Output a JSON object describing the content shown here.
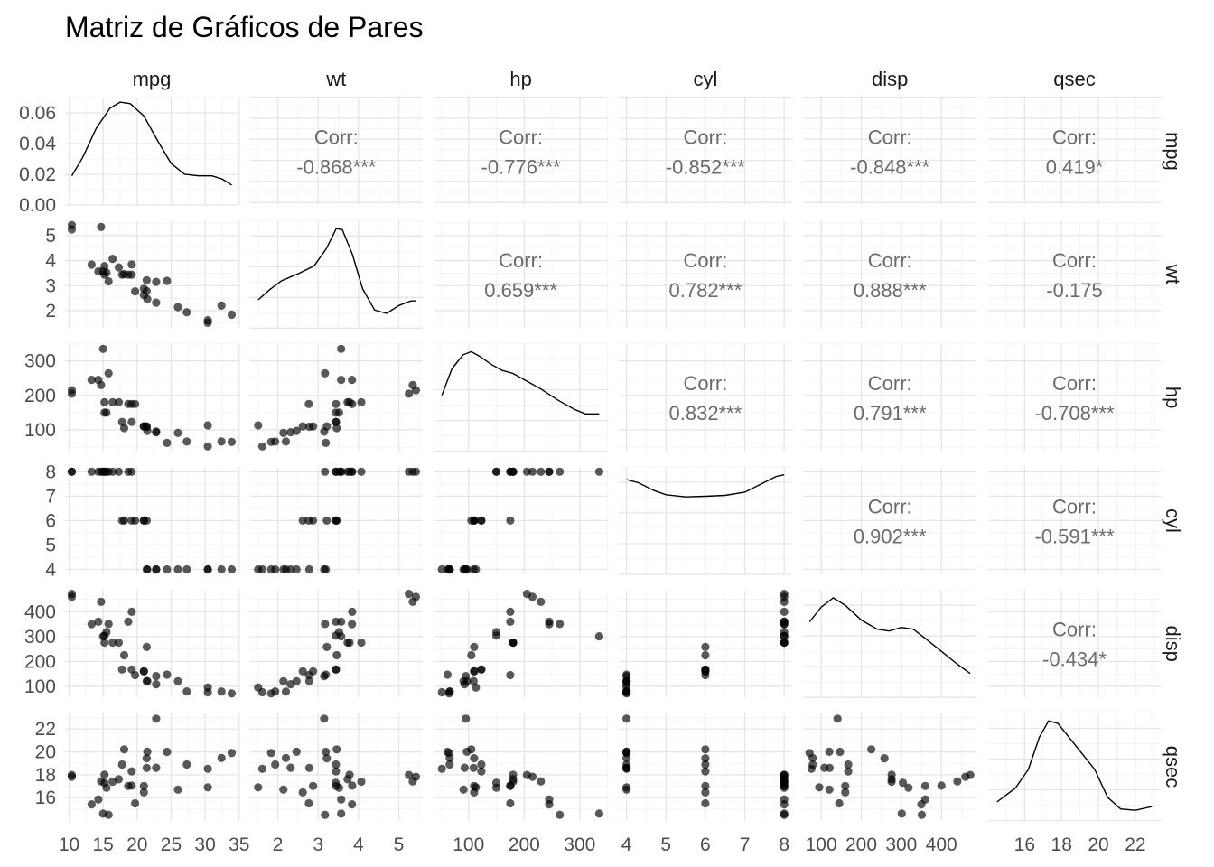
{
  "title": "Matriz de Gráficos de Pares",
  "chart_data": {
    "type": "scatter",
    "title": "Matriz de Gráficos de Pares",
    "variables": [
      "mpg",
      "wt",
      "hp",
      "cyl",
      "disp",
      "qsec"
    ],
    "axes": {
      "mpg": {
        "lim": [
          9.4,
          34.9
        ],
        "ticks": [
          10,
          15,
          20,
          25,
          30,
          35
        ],
        "tick_labels": [
          "10",
          "15",
          "20",
          "25",
          "30",
          "35"
        ]
      },
      "wt": {
        "lim": [
          1.3,
          5.6
        ],
        "ticks": [
          2,
          3,
          4,
          5
        ],
        "tick_labels": [
          "2",
          "3",
          "4",
          "5"
        ]
      },
      "hp": {
        "lim": [
          38,
          350
        ],
        "ticks": [
          100,
          200,
          300
        ],
        "tick_labels": [
          "100",
          "200",
          "300"
        ]
      },
      "cyl": {
        "lim": [
          3.8,
          8.2
        ],
        "ticks": [
          4,
          5,
          6,
          7,
          8
        ],
        "tick_labels": [
          "4",
          "5",
          "6",
          "7",
          "8"
        ]
      },
      "disp": {
        "lim": [
          55,
          488
        ],
        "ticks": [
          100,
          200,
          300,
          400
        ],
        "tick_labels": [
          "100",
          "200",
          "300",
          "400"
        ]
      },
      "qsec": {
        "lim": [
          14.0,
          23.4
        ],
        "ticks": [
          16,
          18,
          20,
          22
        ],
        "tick_labels": [
          "16",
          "18",
          "20",
          "22"
        ]
      }
    },
    "density_axis": {
      "lim": [
        0,
        0.07
      ],
      "ticks": [
        0,
        0.02,
        0.04,
        0.06
      ],
      "tick_labels": [
        "0.00",
        "0.02",
        "0.04",
        "0.06"
      ]
    },
    "correlations": [
      {
        "row": "mpg",
        "col": "wt",
        "label": "Corr:",
        "value": "-0.868***"
      },
      {
        "row": "mpg",
        "col": "hp",
        "label": "Corr:",
        "value": "-0.776***"
      },
      {
        "row": "mpg",
        "col": "cyl",
        "label": "Corr:",
        "value": "-0.852***"
      },
      {
        "row": "mpg",
        "col": "disp",
        "label": "Corr:",
        "value": "-0.848***"
      },
      {
        "row": "mpg",
        "col": "qsec",
        "label": "Corr:",
        "value": "0.419*"
      },
      {
        "row": "wt",
        "col": "hp",
        "label": "Corr:",
        "value": "0.659***"
      },
      {
        "row": "wt",
        "col": "cyl",
        "label": "Corr:",
        "value": "0.782***"
      },
      {
        "row": "wt",
        "col": "disp",
        "label": "Corr:",
        "value": "0.888***"
      },
      {
        "row": "wt",
        "col": "qsec",
        "label": "Corr:",
        "value": "-0.175"
      },
      {
        "row": "hp",
        "col": "cyl",
        "label": "Corr:",
        "value": "0.832***"
      },
      {
        "row": "hp",
        "col": "disp",
        "label": "Corr:",
        "value": "0.791***"
      },
      {
        "row": "hp",
        "col": "qsec",
        "label": "Corr:",
        "value": "-0.708***"
      },
      {
        "row": "cyl",
        "col": "disp",
        "label": "Corr:",
        "value": "0.902***"
      },
      {
        "row": "cyl",
        "col": "qsec",
        "label": "Corr:",
        "value": "-0.591***"
      },
      {
        "row": "disp",
        "col": "qsec",
        "label": "Corr:",
        "value": "-0.434*"
      }
    ],
    "densities": {
      "mpg": [
        [
          10.4,
          0.019
        ],
        [
          12,
          0.031
        ],
        [
          14,
          0.05
        ],
        [
          16,
          0.063
        ],
        [
          17.5,
          0.067
        ],
        [
          19,
          0.066
        ],
        [
          21,
          0.058
        ],
        [
          23,
          0.042
        ],
        [
          25,
          0.027
        ],
        [
          27,
          0.02
        ],
        [
          29,
          0.019
        ],
        [
          31,
          0.019
        ],
        [
          32.5,
          0.017
        ],
        [
          33.9,
          0.013
        ]
      ],
      "wt": [
        [
          1.513,
          0.25
        ],
        [
          1.8,
          0.34
        ],
        [
          2.1,
          0.42
        ],
        [
          2.5,
          0.48
        ],
        [
          2.9,
          0.55
        ],
        [
          3.2,
          0.7
        ],
        [
          3.45,
          0.88
        ],
        [
          3.6,
          0.87
        ],
        [
          3.85,
          0.65
        ],
        [
          4.1,
          0.35
        ],
        [
          4.4,
          0.16
        ],
        [
          4.7,
          0.13
        ],
        [
          5.0,
          0.2
        ],
        [
          5.3,
          0.24
        ],
        [
          5.424,
          0.24
        ]
      ],
      "hp": [
        [
          52,
          0.0036
        ],
        [
          70,
          0.0053
        ],
        [
          90,
          0.0062
        ],
        [
          105,
          0.0064
        ],
        [
          120,
          0.0061
        ],
        [
          140,
          0.0056
        ],
        [
          160,
          0.0052
        ],
        [
          180,
          0.005
        ],
        [
          200,
          0.0046
        ],
        [
          230,
          0.004
        ],
        [
          260,
          0.0033
        ],
        [
          290,
          0.0027
        ],
        [
          310,
          0.0024
        ],
        [
          335,
          0.0024
        ]
      ],
      "cyl": [
        [
          4,
          0.3
        ],
        [
          4.3,
          0.29
        ],
        [
          4.7,
          0.265
        ],
        [
          5,
          0.252
        ],
        [
          5.5,
          0.245
        ],
        [
          6,
          0.247
        ],
        [
          6.5,
          0.25
        ],
        [
          7,
          0.26
        ],
        [
          7.4,
          0.285
        ],
        [
          7.8,
          0.31
        ],
        [
          8,
          0.315
        ]
      ],
      "disp": [
        [
          71.1,
          0.0041
        ],
        [
          100,
          0.0049
        ],
        [
          130,
          0.0054
        ],
        [
          160,
          0.005
        ],
        [
          200,
          0.0042
        ],
        [
          240,
          0.0037
        ],
        [
          270,
          0.0036
        ],
        [
          300,
          0.0038
        ],
        [
          330,
          0.0037
        ],
        [
          360,
          0.0032
        ],
        [
          400,
          0.0025
        ],
        [
          440,
          0.0018
        ],
        [
          472,
          0.0013
        ]
      ],
      "qsec": [
        [
          14.5,
          0.04
        ],
        [
          15.5,
          0.07
        ],
        [
          16.2,
          0.11
        ],
        [
          16.8,
          0.18
        ],
        [
          17.3,
          0.215
        ],
        [
          17.8,
          0.21
        ],
        [
          18.4,
          0.18
        ],
        [
          19,
          0.15
        ],
        [
          19.8,
          0.11
        ],
        [
          20.5,
          0.05
        ],
        [
          21.2,
          0.025
        ],
        [
          22,
          0.022
        ],
        [
          22.9,
          0.03
        ]
      ]
    },
    "points": {
      "mpg": [
        21,
        21,
        22.8,
        21.4,
        18.7,
        18.1,
        14.3,
        24.4,
        22.8,
        19.2,
        17.8,
        16.4,
        17.3,
        15.2,
        10.4,
        10.4,
        14.7,
        32.4,
        30.4,
        33.9,
        21.5,
        15.5,
        15.2,
        13.3,
        19.2,
        27.3,
        26,
        30.4,
        15.8,
        19.7,
        15,
        21.4
      ],
      "wt": [
        2.62,
        2.875,
        2.32,
        3.215,
        3.44,
        3.46,
        3.57,
        3.19,
        3.15,
        3.44,
        3.44,
        4.07,
        3.73,
        3.78,
        5.25,
        5.424,
        5.345,
        2.2,
        1.615,
        1.835,
        2.465,
        3.52,
        3.435,
        3.84,
        3.845,
        1.935,
        2.14,
        1.513,
        3.17,
        2.77,
        3.57,
        2.78
      ],
      "hp": [
        110,
        110,
        93,
        110,
        175,
        105,
        245,
        62,
        95,
        123,
        123,
        180,
        180,
        180,
        205,
        215,
        230,
        66,
        52,
        65,
        97,
        150,
        150,
        245,
        175,
        66,
        91,
        113,
        264,
        175,
        335,
        109
      ],
      "cyl": [
        6,
        6,
        4,
        6,
        8,
        6,
        8,
        4,
        4,
        6,
        6,
        8,
        8,
        8,
        8,
        8,
        8,
        4,
        4,
        4,
        4,
        8,
        8,
        8,
        8,
        4,
        4,
        4,
        8,
        6,
        8,
        4
      ],
      "disp": [
        160,
        160,
        108,
        258,
        360,
        225,
        360,
        146.7,
        140.8,
        167.6,
        167.6,
        275.8,
        275.8,
        275.8,
        472,
        460,
        440,
        78.7,
        75.7,
        71.1,
        120.1,
        318,
        304,
        350,
        400,
        79,
        120.3,
        95.1,
        351,
        145,
        301,
        121
      ],
      "qsec": [
        16.46,
        17.02,
        18.61,
        19.44,
        17.02,
        20.22,
        15.84,
        20,
        22.9,
        18.3,
        18.9,
        17.4,
        17.6,
        18,
        17.98,
        17.82,
        17.42,
        19.47,
        18.52,
        19.9,
        20.01,
        16.87,
        17.3,
        15.41,
        17.05,
        18.9,
        16.7,
        16.9,
        14.5,
        15.5,
        14.6,
        18.6
      ]
    }
  }
}
